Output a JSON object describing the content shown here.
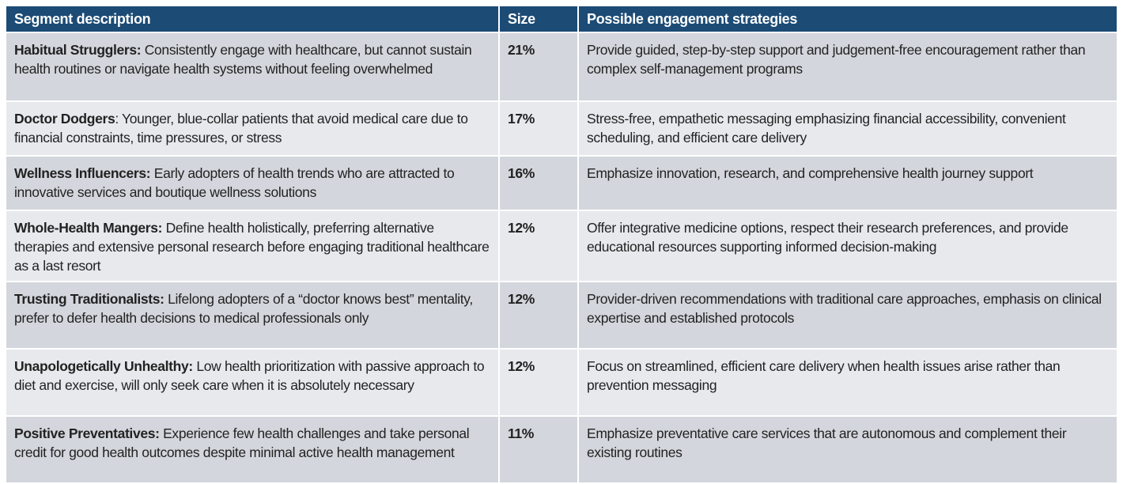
{
  "header": {
    "segment": "Segment description",
    "size": "Size",
    "strategies": "Possible engagement strategies"
  },
  "colors": {
    "header_bg": "#1c4b75",
    "row_dark": "#d3d6dc",
    "row_light": "#e8e9ed"
  },
  "rows": [
    {
      "name": "Habitual Strugglers:",
      "desc": " Consistently engage with healthcare, but cannot sustain health routines or navigate health systems without feeling overwhelmed",
      "size": "21%",
      "strategy": "Provide guided, step-by-step support and judgement-free encouragement rather than complex self-management programs"
    },
    {
      "name": "Doctor Dodgers",
      "desc": ": Younger, blue-collar patients that avoid medical care due to financial constraints, time pressures, or stress",
      "size": "17%",
      "strategy": "Stress-free, empathetic messaging emphasizing financial accessibility, convenient scheduling, and efficient care delivery"
    },
    {
      "name": "Wellness Influencers:",
      "desc": " Early adopters of health trends who are attracted to innovative services and boutique wellness solutions",
      "size": "16%",
      "strategy": "Emphasize innovation, research, and comprehensive health journey support"
    },
    {
      "name": "Whole-Health Mangers:",
      "desc": " Define health holistically, preferring alternative therapies and extensive personal research before engaging traditional healthcare as a last resort",
      "size": "12%",
      "strategy": "Offer integrative medicine options, respect their research preferences, and provide educational resources supporting informed decision-making"
    },
    {
      "name": "Trusting Traditionalists:",
      "desc": " Lifelong adopters of a “doctor knows best” mentality, prefer to defer health decisions to medical professionals only",
      "size": "12%",
      "strategy": "Provider-driven recommendations with traditional care approaches, emphasis on clinical expertise and established protocols"
    },
    {
      "name": "Unapologetically Unhealthy:",
      "desc": " Low health prioritization with passive approach to diet and exercise, will only seek care when it is absolutely necessary",
      "size": "12%",
      "strategy": "Focus on streamlined, efficient care delivery when health issues arise rather than prevention messaging"
    },
    {
      "name": "Positive Preventatives:",
      "desc": " Experience few health challenges and take personal credit for good health outcomes despite minimal active health management",
      "size": "11%",
      "strategy": "Emphasize preventative care services that are autonomous and complement their existing routines"
    }
  ]
}
